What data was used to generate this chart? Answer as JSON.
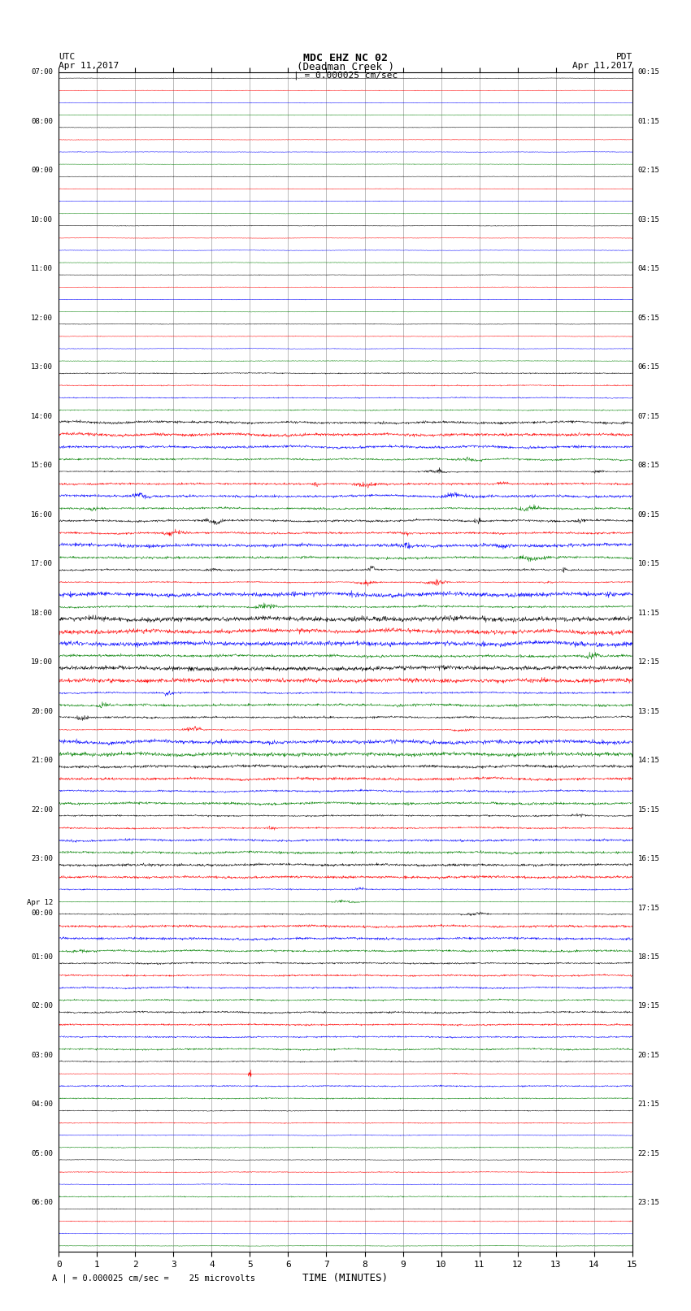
{
  "title_line1": "MDC EHZ NC 02",
  "title_line2": "(Deadman Creek )",
  "title_line3": "| = 0.000025 cm/sec",
  "left_label_line1": "UTC",
  "left_label_line2": "Apr 11,2017",
  "right_label_line1": "PDT",
  "right_label_line2": "Apr 11,2017",
  "xlabel": "TIME (MINUTES)",
  "footer": "A | = 0.000025 cm/sec =    25 microvolts",
  "utc_labels": [
    "07:00",
    "08:00",
    "09:00",
    "10:00",
    "11:00",
    "12:00",
    "13:00",
    "14:00",
    "15:00",
    "16:00",
    "17:00",
    "18:00",
    "19:00",
    "20:00",
    "21:00",
    "22:00",
    "23:00",
    "Apr 12\n00:00",
    "01:00",
    "02:00",
    "03:00",
    "04:00",
    "05:00",
    "06:00"
  ],
  "pdt_labels": [
    "00:15",
    "01:15",
    "02:15",
    "03:15",
    "04:15",
    "05:15",
    "06:15",
    "07:15",
    "08:15",
    "09:15",
    "10:15",
    "11:15",
    "12:15",
    "13:15",
    "14:15",
    "15:15",
    "16:15",
    "17:15",
    "18:15",
    "19:15",
    "20:15",
    "21:15",
    "22:15",
    "23:15"
  ],
  "num_rows": 96,
  "num_groups": 24,
  "minutes": 15,
  "colors": [
    "black",
    "red",
    "blue",
    "green"
  ],
  "background_color": "white",
  "noise_seed": 42
}
